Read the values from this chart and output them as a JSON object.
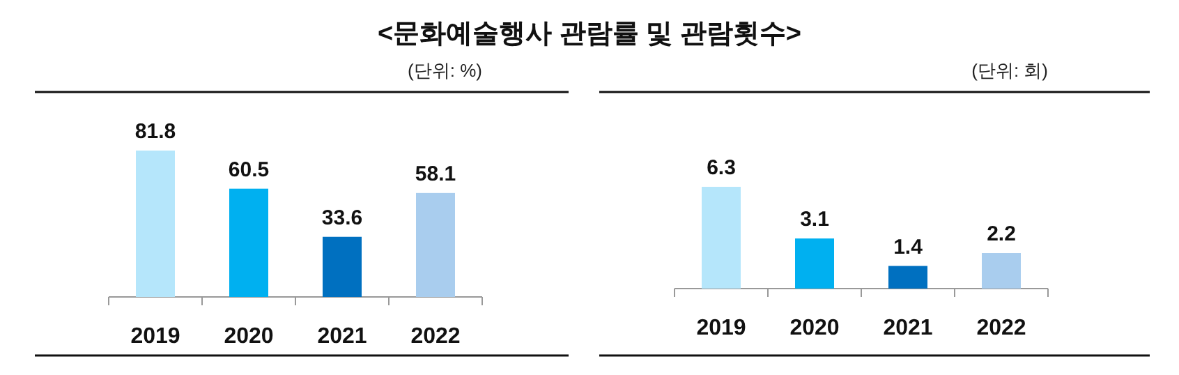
{
  "chart_data": [
    {
      "type": "bar",
      "title": "<문화예술행사 관람률 및 관람횟수>",
      "subtitle": "(단위: %)",
      "categories": [
        "2019",
        "2020",
        "2021",
        "2022"
      ],
      "values": [
        81.8,
        60.5,
        33.6,
        58.1
      ],
      "colors": [
        "#b5e6fb",
        "#00b0f0",
        "#0070c0",
        "#a9cdee"
      ],
      "data_labels": true
    },
    {
      "type": "bar",
      "subtitle": "(단위: 회)",
      "categories": [
        "2019",
        "2020",
        "2021",
        "2022"
      ],
      "values": [
        6.3,
        3.1,
        1.4,
        2.2
      ],
      "colors": [
        "#b5e6fb",
        "#00b0f0",
        "#0070c0",
        "#a9cdee"
      ],
      "data_labels": true
    }
  ]
}
